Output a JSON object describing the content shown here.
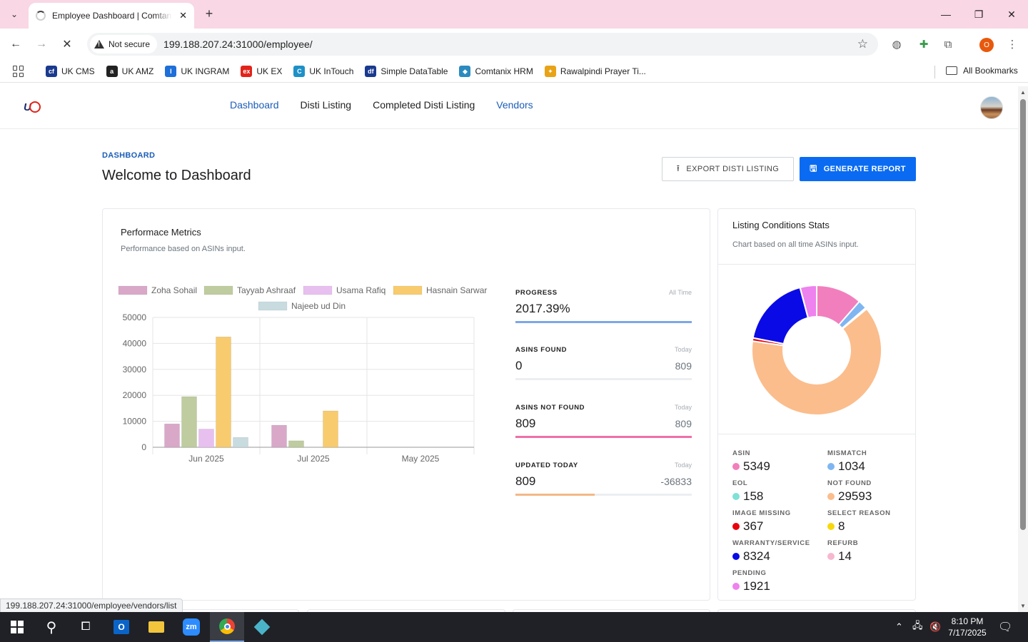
{
  "browser": {
    "tab_title": "Employee Dashboard | Comtanix",
    "security_label": "Not secure",
    "url": "199.188.207.24:31000/employee/",
    "profile_initial": "O",
    "status_url": "199.188.207.24:31000/employee/vendors/list"
  },
  "bookmarks": {
    "items": [
      {
        "label": "UK CMS",
        "color": "#1a3a8f",
        "glyph": "cf"
      },
      {
        "label": "UK AMZ",
        "color": "#222222",
        "glyph": "a"
      },
      {
        "label": "UK INGRAM",
        "color": "#1e6fd9",
        "glyph": "I"
      },
      {
        "label": "UK EX",
        "color": "#e2231a",
        "glyph": "ex"
      },
      {
        "label": "UK InTouch",
        "color": "#1e90c8",
        "glyph": "C"
      },
      {
        "label": "Simple DataTable",
        "color": "#1a3a8f",
        "glyph": "df"
      },
      {
        "label": "Comtanix HRM",
        "color": "#2b8bbf",
        "glyph": "◆"
      },
      {
        "label": "Rawalpindi Prayer Ti...",
        "color": "#e8a317",
        "glyph": "✦"
      }
    ],
    "all_label": "All Bookmarks"
  },
  "nav": {
    "links": [
      {
        "label": "Dashboard",
        "active": true
      },
      {
        "label": "Disti Listing",
        "active": false
      },
      {
        "label": "Completed Disti Listing",
        "active": false
      },
      {
        "label": "Vendors",
        "active": true
      }
    ]
  },
  "header": {
    "crumb": "DASHBOARD",
    "title": "Welcome to Dashboard",
    "export_label": "EXPORT DISTI LISTING",
    "generate_label": "GENERATE REPORT"
  },
  "performance": {
    "title": "Performace Metrics",
    "subtitle": "Performance based on ASINs input."
  },
  "metrics": [
    {
      "label": "PROGRESS",
      "tag": "All Time",
      "value": "2017.39%",
      "secondary": "",
      "color": "#7da7e8",
      "fill": 1.0
    },
    {
      "label": "ASINS FOUND",
      "tag": "Today",
      "value": "0",
      "secondary": "809",
      "color": "#9bbef0",
      "fill": 0.0
    },
    {
      "label": "ASINS NOT FOUND",
      "tag": "Today",
      "value": "809",
      "secondary": "809",
      "color": "#ef6fa8",
      "fill": 1.0
    },
    {
      "label": "UPDATED TODAY",
      "tag": "Today",
      "value": "809",
      "secondary": "-36833",
      "color": "#f4b887",
      "fill": 0.45
    }
  ],
  "chart_data": {
    "type": "bar",
    "categories": [
      "Jun 2025",
      "Jul 2025",
      "May 2025"
    ],
    "series": [
      {
        "name": "Zoha Sohail",
        "color": "#d9a8c9",
        "values": [
          9000,
          8500,
          0
        ]
      },
      {
        "name": "Tayyab Ashraaf",
        "color": "#bfcc9f",
        "values": [
          19500,
          2500,
          0
        ]
      },
      {
        "name": "Usama Rafiq",
        "color": "#e8c0f0",
        "values": [
          7000,
          0,
          0
        ]
      },
      {
        "name": "Hasnain Sarwar",
        "color": "#f8cb6e",
        "values": [
          42500,
          14000,
          0
        ]
      },
      {
        "name": "Najeeb ud Din",
        "color": "#c8dce0",
        "values": [
          3800,
          0,
          0
        ]
      }
    ],
    "yticks": [
      0,
      10000,
      20000,
      30000,
      40000,
      50000
    ],
    "ylim": [
      0,
      50000
    ],
    "grid": true,
    "legend": "top"
  },
  "stats": {
    "title": "Listing Conditions Stats",
    "subtitle": "Chart based on all time ASINs input.",
    "items": [
      {
        "label": "ASIN",
        "value": "5349",
        "color": "#f27fbd"
      },
      {
        "label": "MISMATCH",
        "value": "1034",
        "color": "#7fb6f2"
      },
      {
        "label": "EOL",
        "value": "158",
        "color": "#7fe0d8"
      },
      {
        "label": "NOT FOUND",
        "value": "29593",
        "color": "#fbbd8c"
      },
      {
        "label": "IMAGE MISSING",
        "value": "367",
        "color": "#e8000b"
      },
      {
        "label": "SELECT REASON",
        "value": "8",
        "color": "#f9d80b"
      },
      {
        "label": "WARRANTY/SERVICE",
        "value": "8324",
        "color": "#0a0ae6"
      },
      {
        "label": "REFURB",
        "value": "14",
        "color": "#f7b8cf"
      },
      {
        "label": "PENDING",
        "value": "1921",
        "color": "#ee82ee"
      }
    ]
  },
  "taskbar": {
    "time": "8:10 PM",
    "date": "7/17/2025"
  }
}
